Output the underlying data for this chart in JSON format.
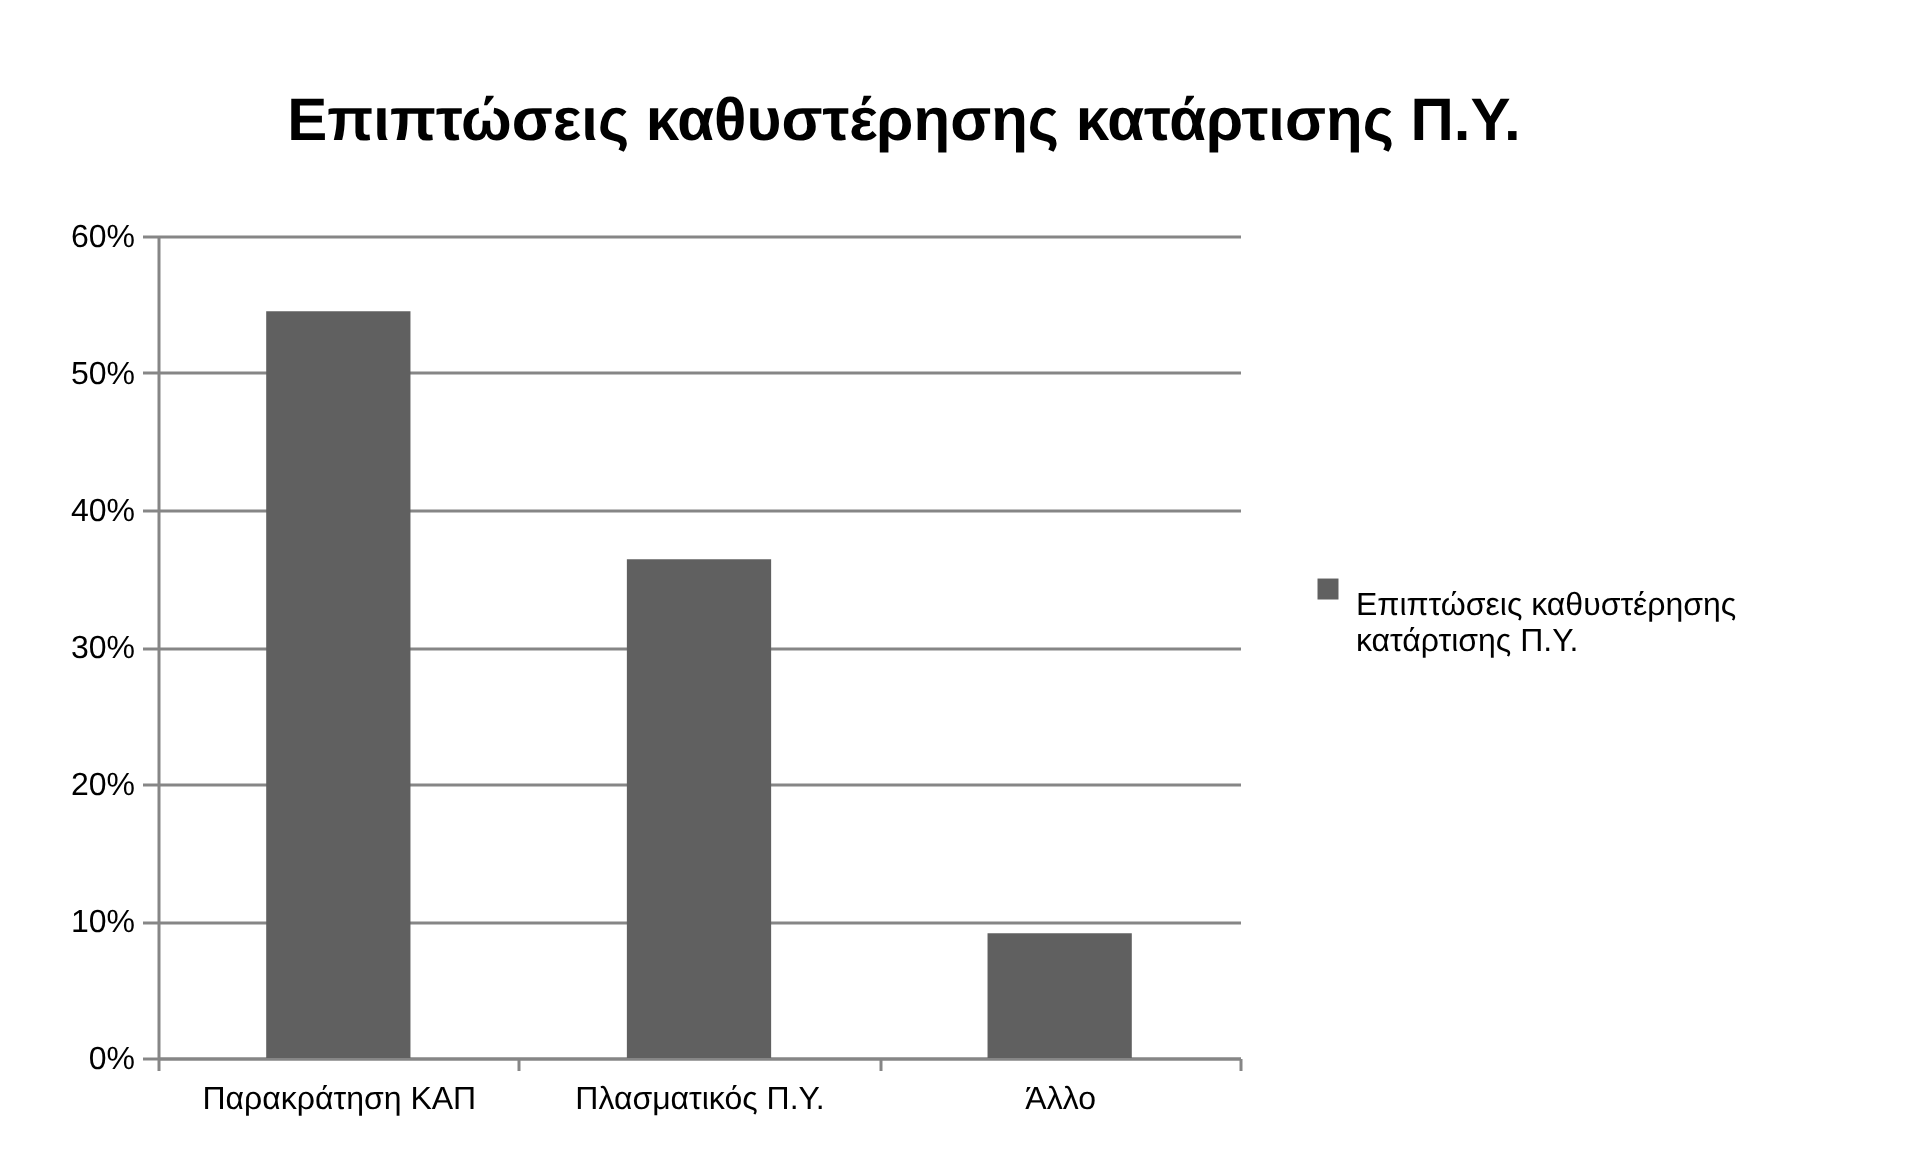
{
  "chart_data": {
    "type": "bar",
    "title": "Επιπτώσεις καθυστέρησης κατάρτισης Π.Υ.",
    "categories": [
      "Παρακράτηση ΚΑΠ",
      "Πλασματικός Π.Υ.",
      "Άλλο"
    ],
    "series": [
      {
        "name": "Επιπτώσεις καθυστέρησης κατάρτισης Π.Υ.",
        "color": "#606060",
        "values": [
          54.5,
          36.4,
          9.1
        ]
      }
    ],
    "ylim": [
      0,
      60
    ],
    "yticks": [
      {
        "value": 0,
        "label": "0%"
      },
      {
        "value": 10,
        "label": "10%"
      },
      {
        "value": 20,
        "label": "20%"
      },
      {
        "value": 30,
        "label": "30%"
      },
      {
        "value": 40,
        "label": "40%"
      },
      {
        "value": 50,
        "label": "50%"
      },
      {
        "value": 60,
        "label": "60%"
      }
    ],
    "grid": "y",
    "legend": "right"
  }
}
